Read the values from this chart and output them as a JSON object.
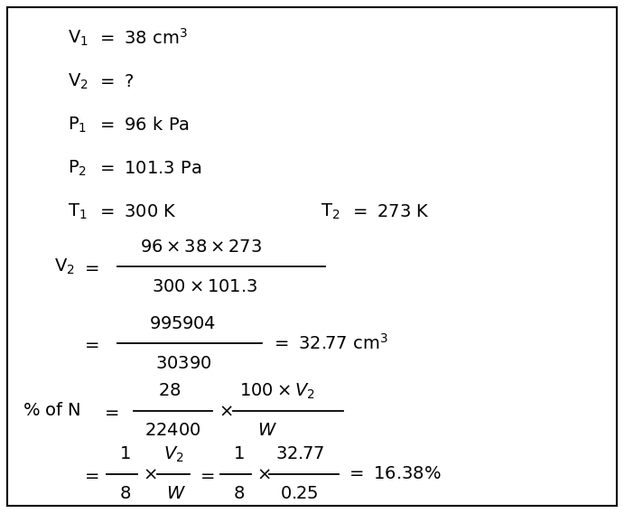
{
  "bg_color": "#ffffff",
  "border_color": "#000000",
  "text_color": "#000000",
  "figsize": [
    6.91,
    5.68
  ],
  "dpi": 100
}
